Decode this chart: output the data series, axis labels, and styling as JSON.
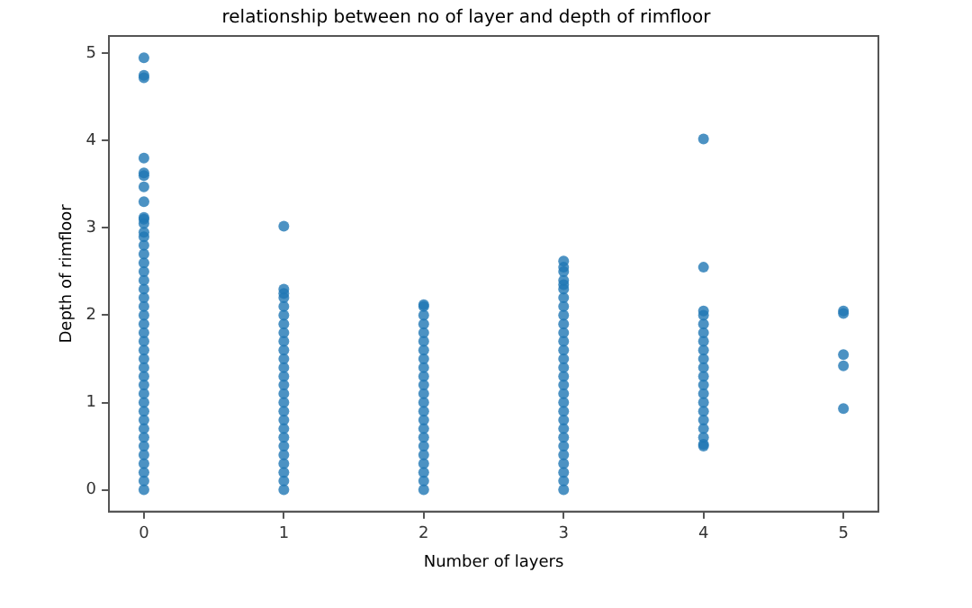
{
  "chart_data": {
    "type": "scatter",
    "title": "relationship between no of layer and depth of rimfloor",
    "xlabel": "Number of layers",
    "ylabel": "Depth of rimfloor",
    "xlim": [
      -0.25,
      5.25
    ],
    "ylim": [
      -0.25,
      5.2
    ],
    "xticks": [
      0,
      1,
      2,
      3,
      4,
      5
    ],
    "yticks": [
      0,
      1,
      2,
      3,
      4,
      5
    ],
    "grid": false,
    "legend": false,
    "marker": "circle",
    "series": [
      {
        "color": "#1f77b4",
        "x": [
          0,
          0,
          0,
          0,
          0,
          0,
          0,
          0,
          0,
          0,
          0,
          0,
          0,
          0,
          0,
          0,
          0,
          0,
          0,
          0,
          0,
          0,
          0,
          0,
          0,
          0,
          0,
          0,
          0,
          0,
          0,
          0,
          0,
          0,
          0,
          0,
          0,
          0,
          0,
          0,
          0,
          0,
          1,
          1,
          1,
          1,
          1,
          1,
          1,
          1,
          1,
          1,
          1,
          1,
          1,
          1,
          1,
          1,
          1,
          1,
          1,
          1,
          1,
          1,
          1,
          1,
          1,
          1,
          2,
          2,
          2,
          2,
          2,
          2,
          2,
          2,
          2,
          2,
          2,
          2,
          2,
          2,
          2,
          2,
          2,
          2,
          2,
          2,
          2,
          2,
          2,
          3,
          3,
          3,
          3,
          3,
          3,
          3,
          3,
          3,
          3,
          3,
          3,
          3,
          3,
          3,
          3,
          3,
          3,
          3,
          3,
          3,
          3,
          3,
          3,
          3,
          3,
          3,
          3,
          3,
          4,
          4,
          4,
          4,
          4,
          4,
          4,
          4,
          4,
          4,
          4,
          4,
          4,
          4,
          4,
          4,
          4,
          4,
          4,
          4,
          5,
          5,
          5,
          5,
          5
        ],
        "values": [
          0,
          0.1,
          0.2,
          0.3,
          0.4,
          0.5,
          0.6,
          0.7,
          0.8,
          0.9,
          1,
          1.1,
          1.2,
          1.3,
          1.4,
          1.5,
          1.6,
          1.7,
          1.8,
          1.9,
          2,
          2.1,
          2.2,
          2.3,
          2.4,
          2.5,
          2.6,
          2.7,
          2.8,
          2.9,
          2.95,
          3.05,
          3.1,
          3.12,
          3.3,
          3.47,
          3.6,
          3.63,
          3.8,
          4.72,
          4.75,
          4.95,
          0,
          0.1,
          0.2,
          0.3,
          0.4,
          0.5,
          0.6,
          0.7,
          0.8,
          0.9,
          1,
          1.1,
          1.2,
          1.3,
          1.4,
          1.5,
          1.6,
          1.7,
          1.8,
          1.9,
          2,
          2.1,
          2.2,
          2.25,
          2.3,
          3.02,
          0,
          0.1,
          0.2,
          0.3,
          0.4,
          0.5,
          0.6,
          0.7,
          0.8,
          0.9,
          1,
          1.1,
          1.2,
          1.3,
          1.4,
          1.5,
          1.6,
          1.7,
          1.8,
          1.9,
          2,
          2.1,
          2.12,
          0,
          0.1,
          0.2,
          0.3,
          0.4,
          0.5,
          0.6,
          0.7,
          0.8,
          0.9,
          1,
          1.1,
          1.2,
          1.3,
          1.4,
          1.5,
          1.6,
          1.7,
          1.8,
          1.9,
          2,
          2.1,
          2.2,
          2.3,
          2.35,
          2.4,
          2.5,
          2.55,
          2.62,
          0.5,
          0.52,
          0.6,
          0.7,
          0.8,
          0.9,
          1,
          1.1,
          1.2,
          1.3,
          1.4,
          1.5,
          1.6,
          1.7,
          1.8,
          1.9,
          2,
          2.05,
          2.55,
          4.02,
          0.93,
          1.42,
          1.55,
          2.02,
          2.05
        ]
      }
    ]
  }
}
